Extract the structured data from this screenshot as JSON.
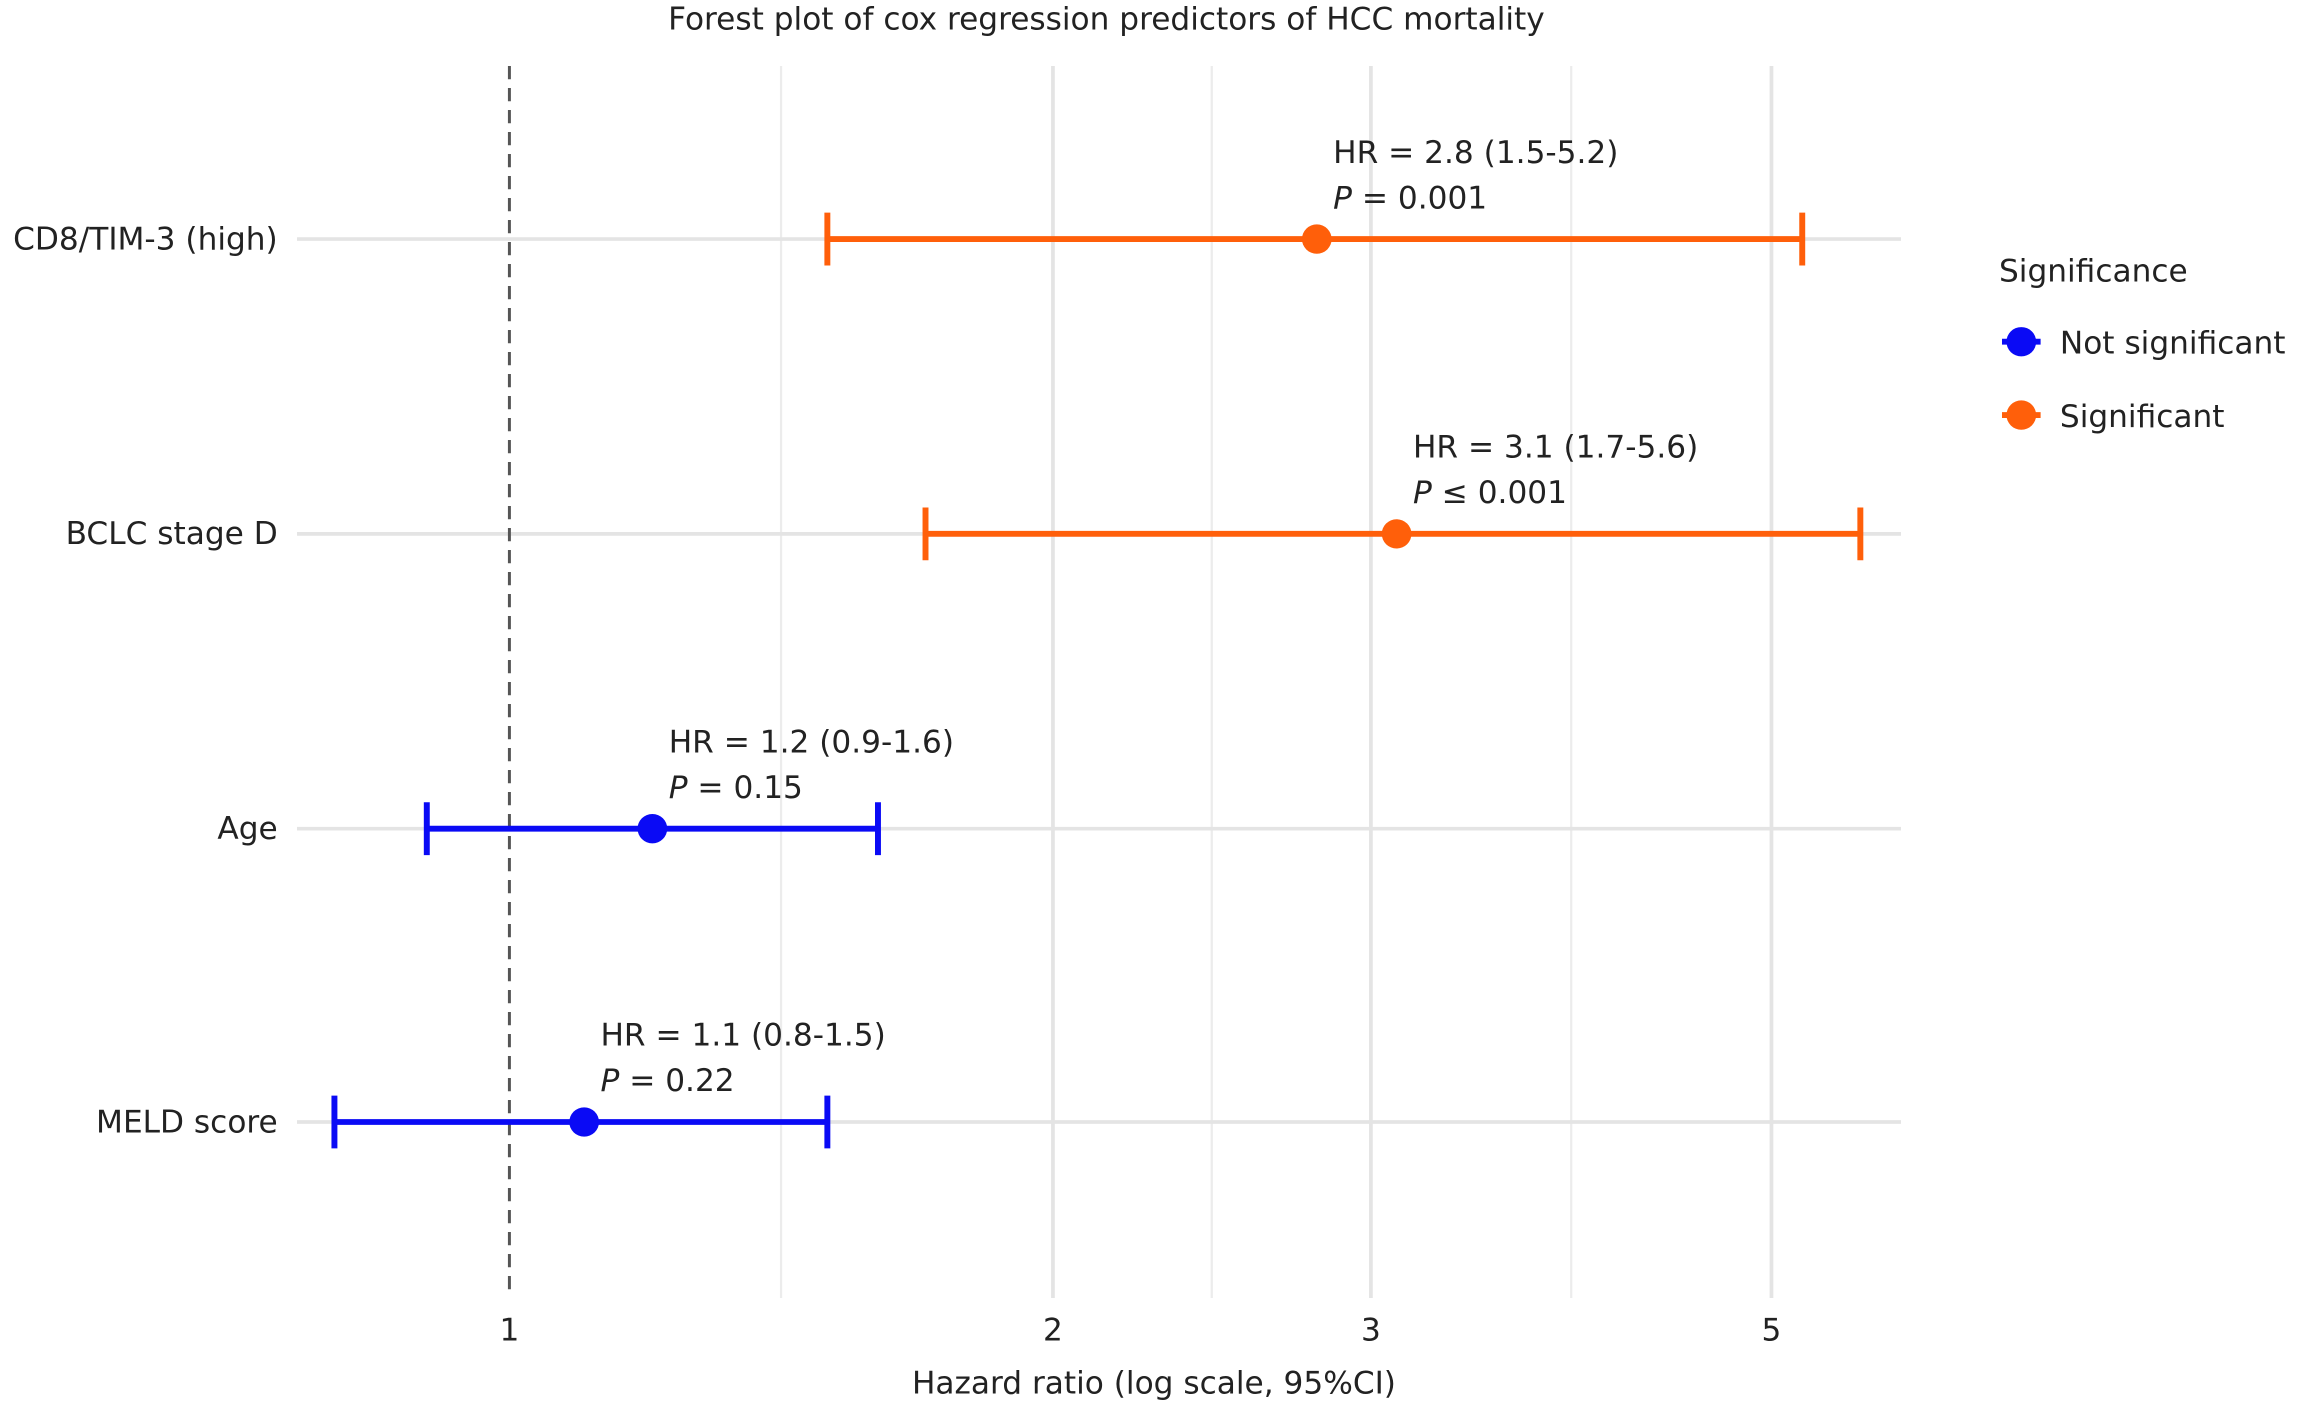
{
  "chart_data": {
    "type": "forest",
    "title": "Forest plot of cox regression predictors of HCC mortality",
    "xlabel": "Hazard ratio (log scale, 95%CI)",
    "ylabel": "",
    "x_scale": "log",
    "xlim": [
      0.76,
      5.9
    ],
    "x_ticks": [
      1,
      2,
      3,
      5
    ],
    "x_tick_labels": [
      "1",
      "2",
      "3",
      "5"
    ],
    "x_minor_ticks": [
      1.414,
      2.449,
      3.873
    ],
    "reference_line": 1,
    "grid": true,
    "legend": {
      "title": "Significance",
      "placement": "right",
      "entries": [
        {
          "label": "Not significant",
          "color": "#0A0AF5"
        },
        {
          "label": "Significant",
          "color": "#FF5F0A"
        }
      ]
    },
    "rows": [
      {
        "label": "CD8/TIM-3 (high)",
        "hr": 2.8,
        "lower": 1.5,
        "upper": 5.2,
        "significance": "Significant",
        "hr_text": "HR = 2.8 (1.5-5.2)",
        "p_symbol": "P",
        "p_text": " = 0.001"
      },
      {
        "label": "BCLC stage D",
        "hr": 3.1,
        "lower": 1.7,
        "upper": 5.6,
        "significance": "Significant",
        "hr_text": "HR = 3.1 (1.7-5.6)",
        "p_symbol": "P",
        "p_text": " ≤ 0.001"
      },
      {
        "label": "Age",
        "hr": 1.2,
        "lower": 0.9,
        "upper": 1.6,
        "significance": "Not significant",
        "hr_text": "HR = 1.2 (0.9-1.6)",
        "p_symbol": "P",
        "p_text": " = 0.15"
      },
      {
        "label": "MELD score",
        "hr": 1.1,
        "lower": 0.8,
        "upper": 1.5,
        "significance": "Not significant",
        "hr_text": "HR = 1.1 (0.8-1.5)",
        "p_symbol": "P",
        "p_text": " = 0.22"
      }
    ]
  }
}
